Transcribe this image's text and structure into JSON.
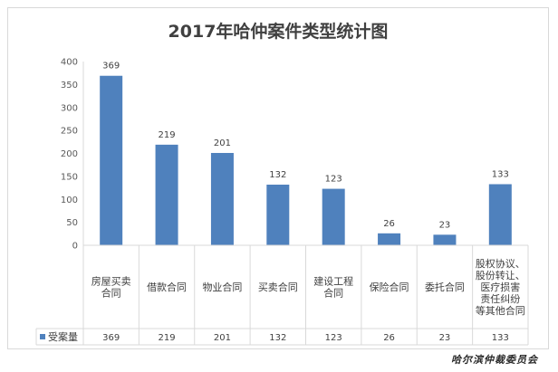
{
  "chart_data": {
    "type": "bar",
    "title": "2017年哈仲案件类型统计图",
    "categories": [
      "房屋买卖合同",
      "借款合同",
      "物业合同",
      "买卖合同",
      "建设工程合同",
      "保险合同",
      "委托合同",
      "股权协议、股份转让、医疗损害责任纠纷等其他合同"
    ],
    "category_lines": [
      [
        "房屋买卖",
        "合同"
      ],
      [
        "借款合同"
      ],
      [
        "物业合同"
      ],
      [
        "买卖合同"
      ],
      [
        "建设工程",
        "合同"
      ],
      [
        "保险合同"
      ],
      [
        "委托合同"
      ],
      [
        "股权协议、",
        "股份转让、",
        "医疗损害",
        "责任纠纷",
        "等其他合同"
      ]
    ],
    "series": [
      {
        "name": "受案量",
        "values": [
          369,
          219,
          201,
          132,
          123,
          26,
          23,
          133
        ],
        "color": "#4f81bd"
      }
    ],
    "yticks": [
      0,
      50,
      100,
      150,
      200,
      250,
      300,
      350,
      400
    ],
    "ylim": [
      0,
      400
    ],
    "grid": false,
    "legend": "data-table-left",
    "data_table": true
  },
  "footer": {
    "text": "哈尔滨仲裁委员会"
  }
}
